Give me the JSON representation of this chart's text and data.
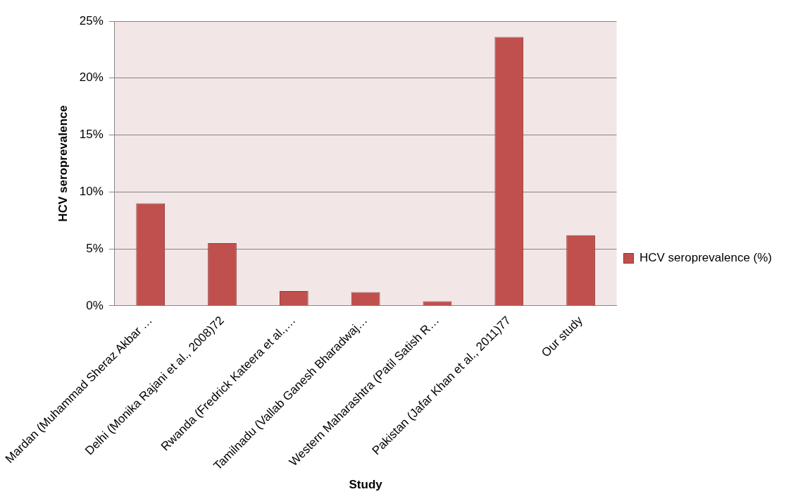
{
  "chart_data": {
    "type": "bar",
    "xlabel": "Study",
    "ylabel": "HCV seroprevalence",
    "categories": [
      "Mardan (Muhammad Sheraz Akbar …",
      "Delhi (Monika Rajani et al., 2008)72",
      "Rwanda (Fredrick Kateera et al.,…",
      "Tamilnadu (Vallab Ganesh Bharadwaj…",
      "Western Maharashtra (Patil Satish R…",
      "Pakistan (Jafar Khan et al., 2011)77",
      "Our study"
    ],
    "series": [
      {
        "name": "HCV seroprevalence (%)",
        "color": "#c0504d",
        "values": [
          9.0,
          5.5,
          1.3,
          1.2,
          0.4,
          23.6,
          6.2
        ]
      }
    ],
    "ylim": [
      0,
      25
    ],
    "yticks": [
      {
        "value": 0,
        "label": "0%"
      },
      {
        "value": 5,
        "label": "5%"
      },
      {
        "value": 10,
        "label": "10%"
      },
      {
        "value": 15,
        "label": "15%"
      },
      {
        "value": 20,
        "label": "20%"
      },
      {
        "value": 25,
        "label": "25%"
      }
    ],
    "grid": "y",
    "legend": "right"
  }
}
